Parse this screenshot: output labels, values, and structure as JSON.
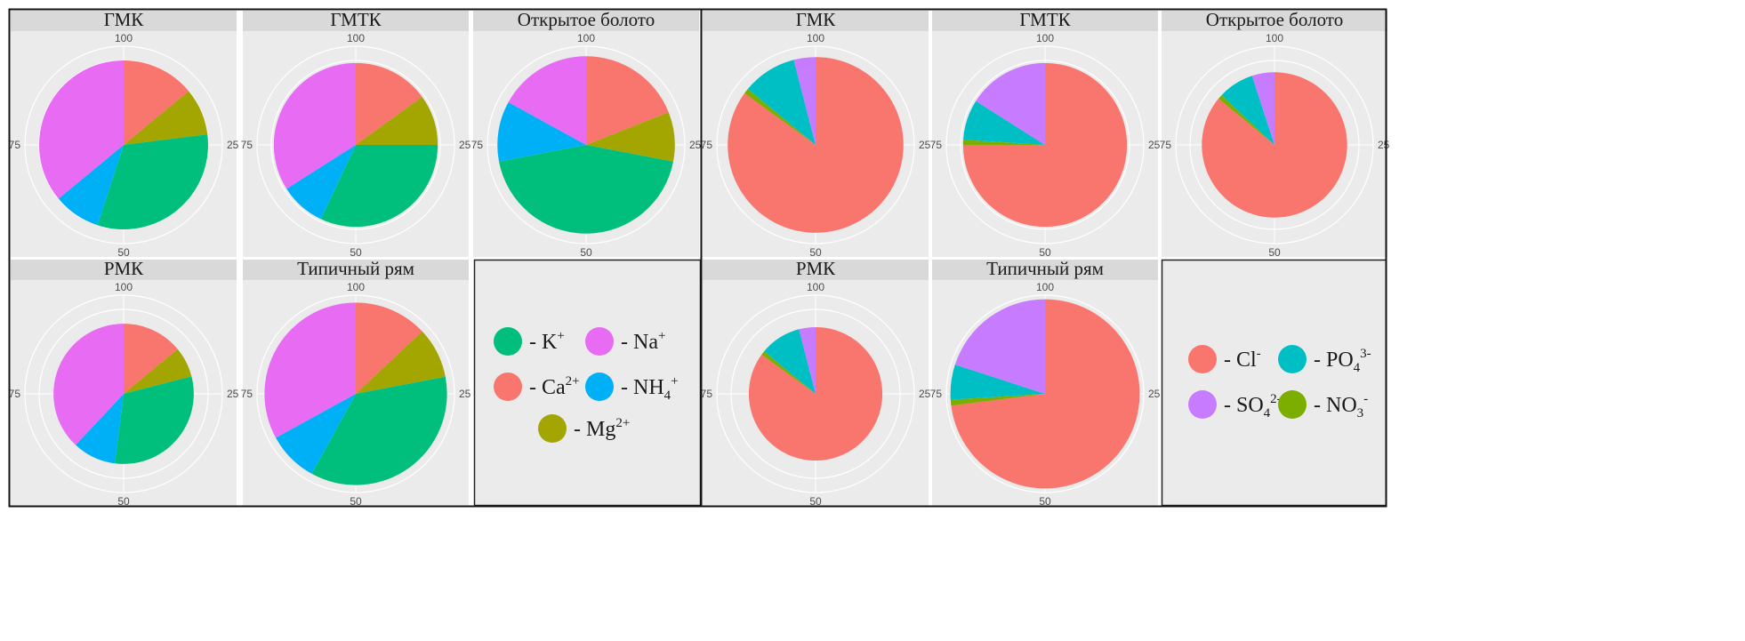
{
  "chart_data": [
    {
      "type": "pie",
      "group": "cations",
      "theta_ticks": [
        "100",
        "25",
        "50",
        "75"
      ],
      "legend": [
        {
          "base": "- K",
          "sup": "+",
          "sub": "",
          "color": "#00BF7D"
        },
        {
          "base": "- Na",
          "sup": "+",
          "sub": "",
          "color": "#E76BF3"
        },
        {
          "base": "- Ca",
          "sup": "2+",
          "sub": "",
          "color": "#F8766D"
        },
        {
          "base": "- NH",
          "sup": "+",
          "sub": "4",
          "color": "#00B0F6"
        },
        {
          "base": "- Mg",
          "sup": "2+",
          "sub": "",
          "color": "#A3A500"
        }
      ],
      "panels": [
        {
          "title": "ГМК",
          "radius_frac": 1.0,
          "slices": [
            {
              "ion": "Ca",
              "value": 14,
              "color": "#F8766D"
            },
            {
              "ion": "Mg",
              "value": 9,
              "color": "#A3A500"
            },
            {
              "ion": "K",
              "value": 32,
              "color": "#00BF7D"
            },
            {
              "ion": "NH4",
              "value": 9,
              "color": "#00B0F6"
            },
            {
              "ion": "Na",
              "value": 36,
              "color": "#E76BF3"
            }
          ]
        },
        {
          "title": "ГМТК",
          "radius_frac": 0.97,
          "slices": [
            {
              "ion": "Ca",
              "value": 15,
              "color": "#F8766D"
            },
            {
              "ion": "Mg",
              "value": 10,
              "color": "#A3A500"
            },
            {
              "ion": "K",
              "value": 32,
              "color": "#00BF7D"
            },
            {
              "ion": "NH4",
              "value": 9,
              "color": "#00B0F6"
            },
            {
              "ion": "Na",
              "value": 34,
              "color": "#E76BF3"
            }
          ]
        },
        {
          "title": "Открытое болото",
          "radius_frac": 1.05,
          "slices": [
            {
              "ion": "Ca",
              "value": 19,
              "color": "#F8766D"
            },
            {
              "ion": "Mg",
              "value": 9,
              "color": "#A3A500"
            },
            {
              "ion": "K",
              "value": 44,
              "color": "#00BF7D"
            },
            {
              "ion": "NH4",
              "value": 11,
              "color": "#00B0F6"
            },
            {
              "ion": "Na",
              "value": 17,
              "color": "#E76BF3"
            }
          ]
        },
        {
          "title": "РМК",
          "radius_frac": 0.83,
          "slices": [
            {
              "ion": "Ca",
              "value": 14,
              "color": "#F8766D"
            },
            {
              "ion": "Mg",
              "value": 7,
              "color": "#A3A500"
            },
            {
              "ion": "K",
              "value": 31,
              "color": "#00BF7D"
            },
            {
              "ion": "NH4",
              "value": 10,
              "color": "#00B0F6"
            },
            {
              "ion": "Na",
              "value": 38,
              "color": "#E76BF3"
            }
          ]
        },
        {
          "title": "Типичный рям",
          "radius_frac": 1.08,
          "slices": [
            {
              "ion": "Ca",
              "value": 13,
              "color": "#F8766D"
            },
            {
              "ion": "Mg",
              "value": 9,
              "color": "#A3A500"
            },
            {
              "ion": "K",
              "value": 36,
              "color": "#00BF7D"
            },
            {
              "ion": "NH4",
              "value": 9,
              "color": "#00B0F6"
            },
            {
              "ion": "Na",
              "value": 33,
              "color": "#E76BF3"
            }
          ]
        }
      ]
    },
    {
      "type": "pie",
      "group": "anions",
      "theta_ticks": [
        "100",
        "25",
        "50",
        "75"
      ],
      "legend": [
        {
          "base": "- Cl",
          "sup": "-",
          "sub": "",
          "color": "#F8766D"
        },
        {
          "base": "- PO",
          "sup": "3-",
          "sub": "4",
          "color": "#00BFC4"
        },
        {
          "base": "- SO",
          "sup": "2-",
          "sub": "4",
          "color": "#C77CFF"
        },
        {
          "base": "- NO",
          "sup": "-",
          "sub": "3",
          "color": "#7CAE00"
        }
      ],
      "panels": [
        {
          "title": "ГМК",
          "radius_frac": 1.04,
          "slices": [
            {
              "ion": "Cl",
              "value": 85,
              "color": "#F8766D"
            },
            {
              "ion": "NO3",
              "value": 1,
              "color": "#7CAE00"
            },
            {
              "ion": "PO4",
              "value": 10,
              "color": "#00BFC4"
            },
            {
              "ion": "SO4",
              "value": 4,
              "color": "#C77CFF"
            }
          ]
        },
        {
          "title": "ГМТК",
          "radius_frac": 0.97,
          "slices": [
            {
              "ion": "Cl",
              "value": 75,
              "color": "#F8766D"
            },
            {
              "ion": "NO3",
              "value": 1,
              "color": "#7CAE00"
            },
            {
              "ion": "PO4",
              "value": 8,
              "color": "#00BFC4"
            },
            {
              "ion": "SO4",
              "value": 16,
              "color": "#C77CFF"
            }
          ]
        },
        {
          "title": "Открытое болото",
          "radius_frac": 0.86,
          "slices": [
            {
              "ion": "Cl",
              "value": 86,
              "color": "#F8766D"
            },
            {
              "ion": "NO3",
              "value": 1,
              "color": "#7CAE00"
            },
            {
              "ion": "PO4",
              "value": 8,
              "color": "#00BFC4"
            },
            {
              "ion": "SO4",
              "value": 5,
              "color": "#C77CFF"
            }
          ]
        },
        {
          "title": "РМК",
          "radius_frac": 0.79,
          "slices": [
            {
              "ion": "Cl",
              "value": 85,
              "color": "#F8766D"
            },
            {
              "ion": "NO3",
              "value": 1,
              "color": "#7CAE00"
            },
            {
              "ion": "PO4",
              "value": 10,
              "color": "#00BFC4"
            },
            {
              "ion": "SO4",
              "value": 4,
              "color": "#C77CFF"
            }
          ]
        },
        {
          "title": "Типичный рям",
          "radius_frac": 1.12,
          "slices": [
            {
              "ion": "Cl",
              "value": 73,
              "color": "#F8766D"
            },
            {
              "ion": "NO3",
              "value": 1,
              "color": "#7CAE00"
            },
            {
              "ion": "PO4",
              "value": 6,
              "color": "#00BFC4"
            },
            {
              "ion": "SO4",
              "value": 20,
              "color": "#C77CFF"
            }
          ]
        }
      ]
    }
  ]
}
